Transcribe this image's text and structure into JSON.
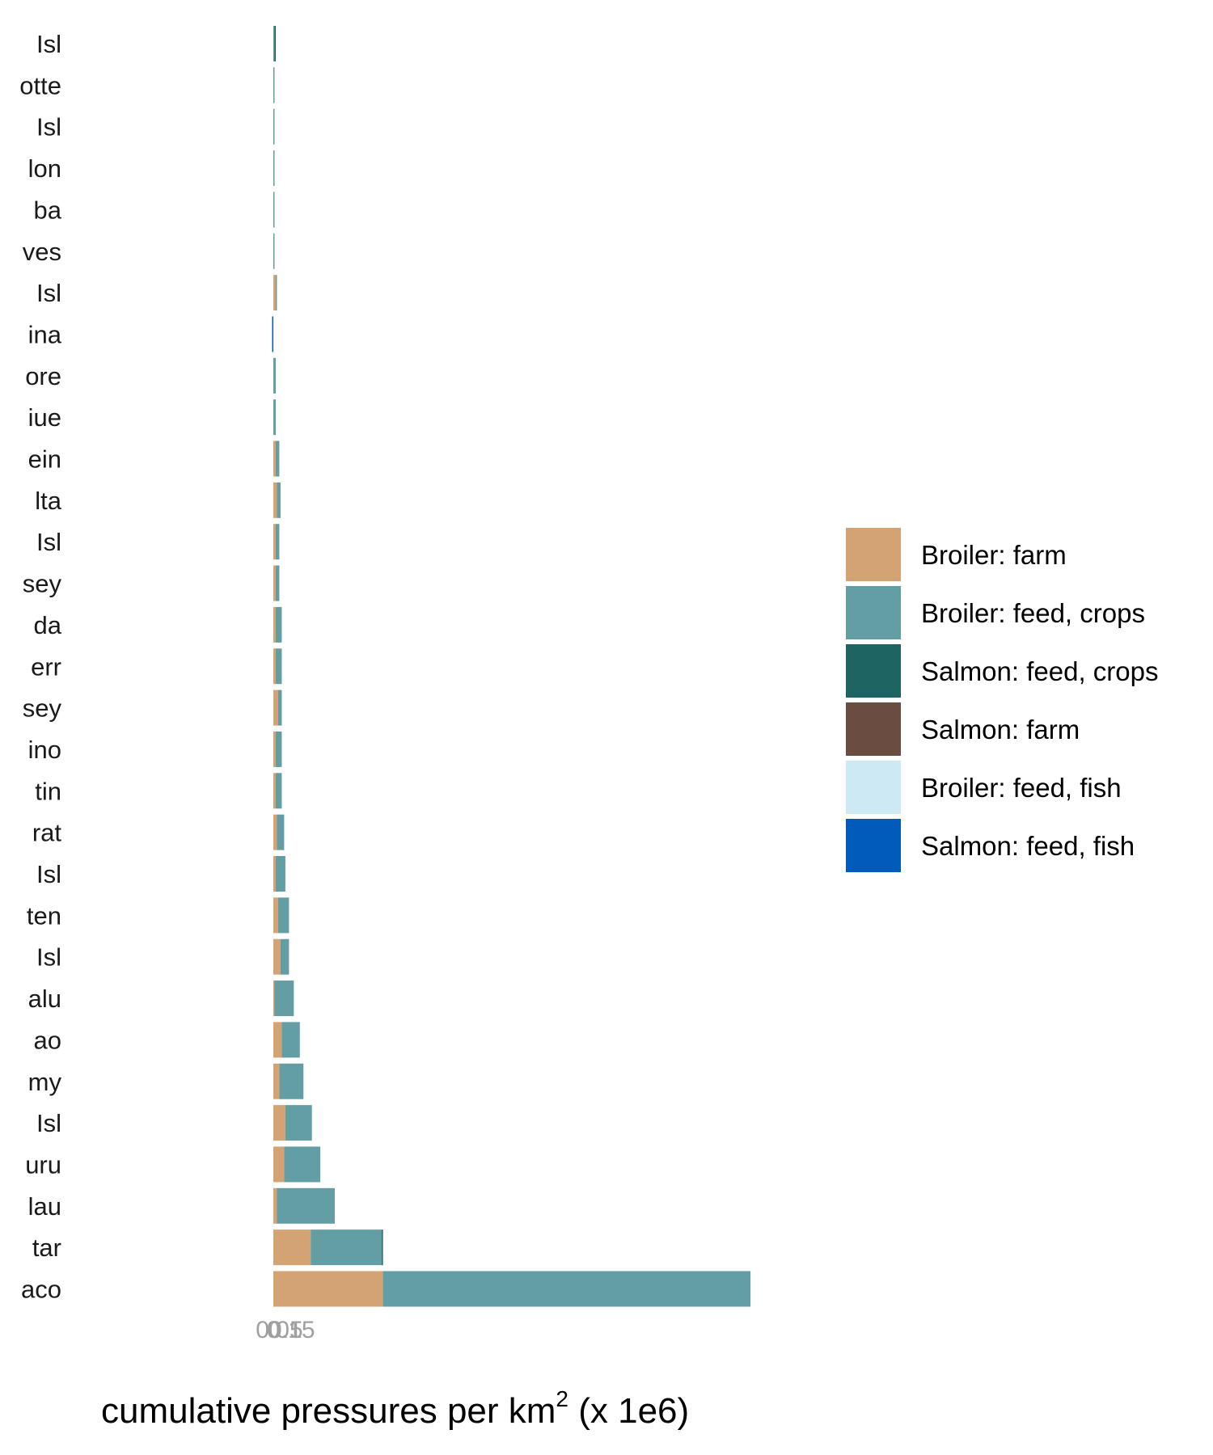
{
  "chart_data": {
    "type": "bar",
    "orientation": "horizontal",
    "stacked": true,
    "categories": [
      "Isl",
      "otte",
      "Isl",
      "lon",
      "ba",
      "ves",
      "Isl",
      "ina",
      "ore",
      "iue",
      "ein",
      "lta",
      "Isl",
      "sey",
      "da",
      "err",
      "sey",
      "ino",
      "tin",
      "rat",
      "Isl",
      "ten",
      "Isl",
      "alu",
      "ao",
      "my",
      "Isl",
      "uru",
      "lau",
      "tar",
      "aco"
    ],
    "highlight_category_index": 0,
    "series": [
      {
        "name": "Broiler: farm",
        "color": "#D4A373",
        "values": [
          0,
          0,
          0,
          0,
          0,
          0,
          0.02,
          0,
          0,
          0,
          0.02,
          0.03,
          0.02,
          0.02,
          0.02,
          0.02,
          0.04,
          0.02,
          0.02,
          0.03,
          0.02,
          0.04,
          0.06,
          0.01,
          0.07,
          0.05,
          0.1,
          0.09,
          0.03,
          0.31,
          0.91
        ]
      },
      {
        "name": "Broiler: feed, crops",
        "color": "#639EA5",
        "values": [
          0.01,
          0.01,
          0.01,
          0.01,
          0.01,
          0.01,
          0.01,
          0,
          0.02,
          0.02,
          0.03,
          0.03,
          0.03,
          0.03,
          0.05,
          0.05,
          0.03,
          0.05,
          0.05,
          0.06,
          0.08,
          0.09,
          0.07,
          0.16,
          0.15,
          0.2,
          0.22,
          0.3,
          0.48,
          0.59,
          3.05
        ]
      },
      {
        "name": "Salmon: feed, crops",
        "color": "#1E6462",
        "values": [
          0.005,
          0,
          0,
          0,
          0,
          0,
          0,
          0,
          0,
          0,
          0,
          0,
          0,
          0,
          0,
          0,
          0,
          0,
          0,
          0,
          0,
          0,
          0,
          0,
          0,
          0,
          0,
          0,
          0,
          0.005,
          0
        ]
      },
      {
        "name": "Salmon: farm",
        "color": "#6B4C40",
        "values": [
          0,
          0,
          0,
          0,
          0,
          0,
          0,
          0,
          0,
          0,
          0,
          0,
          0,
          0,
          0,
          0,
          0,
          0,
          0,
          0,
          0,
          0,
          0,
          0,
          0,
          0,
          0,
          0,
          0,
          0,
          0
        ]
      },
      {
        "name": "Broiler: feed, fish",
        "color": "#CDE9F3",
        "values": [
          0,
          0,
          0,
          0,
          0,
          0,
          0,
          0,
          0,
          0,
          0,
          0,
          0,
          0,
          0,
          0,
          0,
          0,
          0,
          0,
          0,
          0,
          0,
          0,
          0,
          0,
          0,
          0,
          0,
          0,
          0
        ]
      },
      {
        "name": "Salmon: feed, fish",
        "color": "#005BBB",
        "values": [
          0,
          0,
          0,
          0,
          0,
          0,
          0,
          -0.01,
          0,
          0,
          0,
          0,
          0,
          0,
          0,
          0,
          0,
          0,
          0,
          0,
          0,
          0,
          0,
          0,
          0,
          0,
          0,
          0,
          0,
          0,
          0
        ]
      }
    ],
    "xticks": [
      {
        "value": 0,
        "label": "0"
      },
      {
        "value": 0.05,
        "label": "0.05"
      },
      {
        "value": 0.1,
        "label": "0.1"
      },
      {
        "value": 0.15,
        "label": "0.15"
      }
    ],
    "xlabel": "cumulative pressures per km",
    "xlabel_sup": "2",
    "xlabel_suffix": " (x 1e6)",
    "legend_position": "right",
    "grid": false
  },
  "colors": {
    "highlight_label": "#FF2020",
    "label": "#1a1a1a"
  }
}
